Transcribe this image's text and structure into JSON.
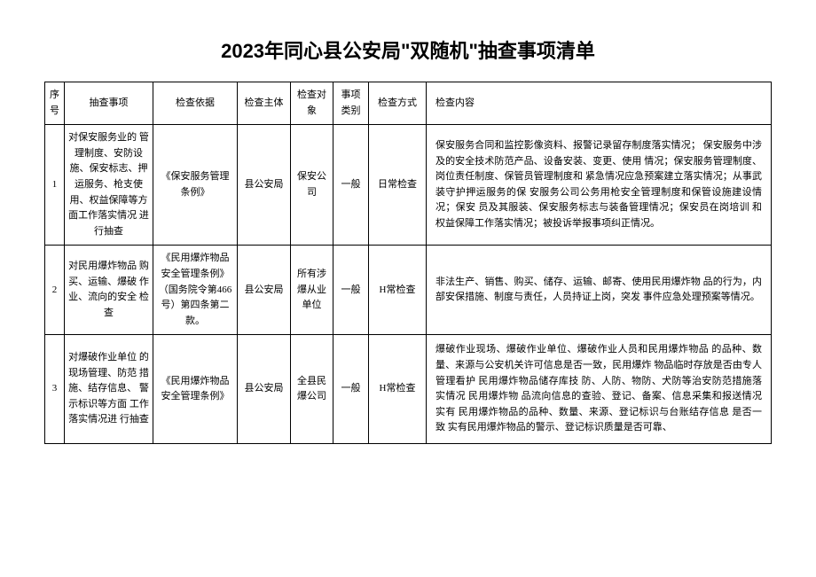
{
  "title": "2023年同心县公安局\"双随机\"抽查事项清单",
  "headers": {
    "seq": "序号",
    "item": "抽查事项",
    "basis": "检查依据",
    "subject": "检查主体",
    "object": "检查对象",
    "category": "事项类别",
    "method": "检查方式",
    "content": "检查内容"
  },
  "rows": [
    {
      "seq": "1",
      "item": "对保安服务业的 管理制度、安防设施、保安标志、押运服务、枪支使用、权益保障等方面工作落实情况 进行抽查",
      "basis": "《保安服务管理 条例》",
      "subject": "县公安局",
      "object": "保安公司",
      "category": "一般",
      "method": "日常检查",
      "content": "保安服务合同和监控影像资料、报警记录留存制度落实情况； 保安服务中涉及的安全技术防范产品、设备安装、变更、使用 情况；保安服务管理制度、岗位责任制度、保管员管理制度和 紧急情况应急预案建立落实情况；从事武装守护押运服务的保 安服务公司公务用枪安全管理制度和保管设施建设情况；保安 员及其服装、保安服务标志与装备管理情况；保安员在岗培训 和权益保障工作落实情况；被投诉举报事项纠正情况。"
    },
    {
      "seq": "2",
      "item": "对民用爆炸物品 购买、运输、爆破 作业、流向的安全 检查",
      "basis": "《民用爆炸物品 安全管理条例》 （国务院令第466 号）第四条第二 款。",
      "subject": "县公安局",
      "object": "所有涉爆从业单位",
      "category": "一般",
      "method": "H常检查",
      "content": "非法生产、销售、购买、储存、运输、邮寄、使用民用爆炸物 品的行为，内部安保措施、制度与责任，人员持证上岗，突发 事件应急处理预案等情况。"
    },
    {
      "seq": "3",
      "item": "对爆破作业单位 的现场管理、防范 措施、结存信息、 警示标识等方面 工作落实情况进 行抽查",
      "basis": "《民用爆炸物品安全管理条例》",
      "subject": "县公安局",
      "object": "全县民爆公司",
      "category": "一般",
      "method": "H常检查",
      "content": "爆破作业现场、爆破作业单位、爆破作业人员和民用爆炸物品 的品种、数量、来源与公安机关许可信息是否一致，民用爆炸 物品临时存放是否由专人管理看护 民用爆炸物品储存库技 防、人防、物防、犬防等治安防范措施落实情况 民用爆炸物 品流向信息的查验、登记、备案、信息采集和报送情况 实有 民用爆炸物品的品种、数量、来源、登记标识与台账结存信息 是否一致 实有民用爆炸物品的警示、登记标识质量是否可靠、"
    }
  ],
  "styles": {
    "title_fontsize": 22,
    "body_fontsize": 11,
    "border_color": "#000000",
    "background_color": "#ffffff",
    "font_family_title": "SimHei",
    "font_family_body": "SimSun"
  }
}
